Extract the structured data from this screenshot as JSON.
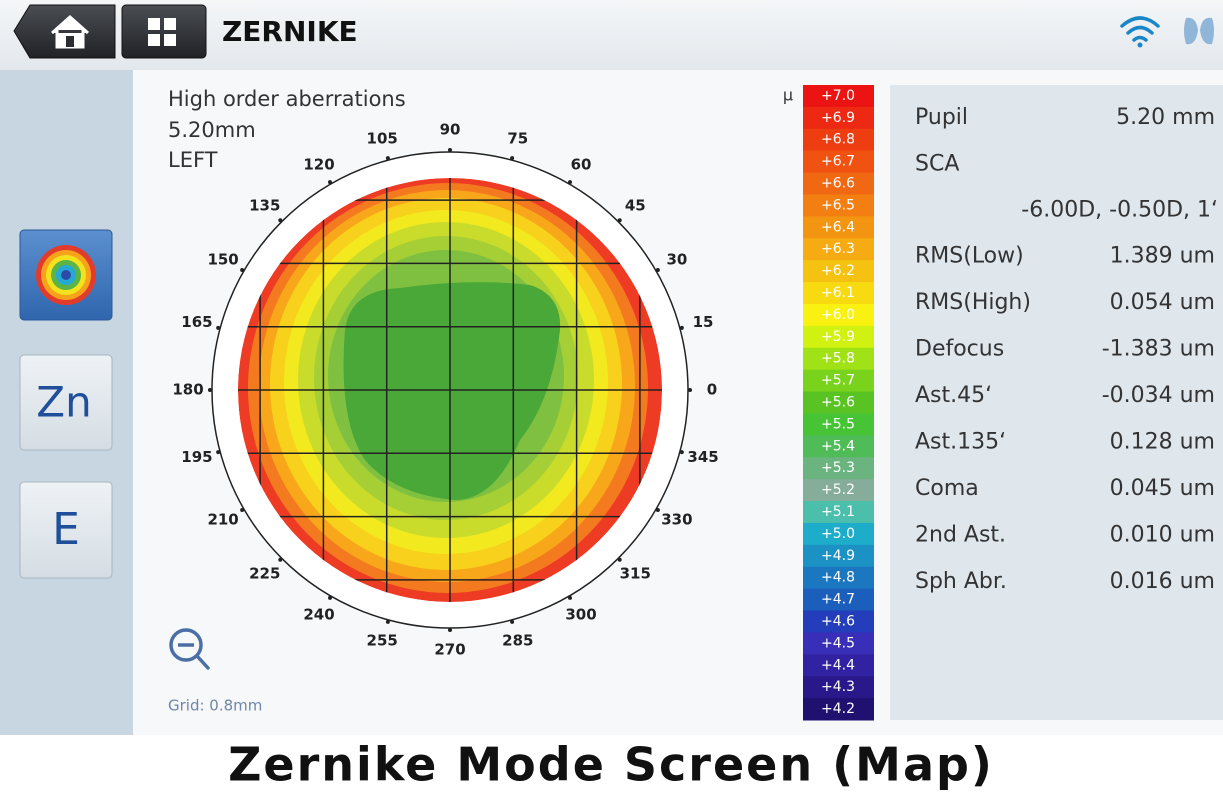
{
  "header": {
    "title": "ZERNIKE"
  },
  "side_buttons": [
    "Zn",
    "E"
  ],
  "map": {
    "title": "High order aberrations",
    "pupil": "5.20mm",
    "eye": "LEFT",
    "angles": [
      "0",
      "15",
      "30",
      "45",
      "60",
      "75",
      "90",
      "105",
      "120",
      "135",
      "150",
      "165",
      "180",
      "195",
      "210",
      "225",
      "240",
      "255",
      "270",
      "285",
      "300",
      "315",
      "330",
      "345"
    ],
    "grid_note": "Grid: 0.8mm"
  },
  "scale": {
    "unit": "μ",
    "labels": [
      "+7.0",
      "+6.9",
      "+6.8",
      "+6.7",
      "+6.6",
      "+6.5",
      "+6.4",
      "+6.3",
      "+6.2",
      "+6.1",
      "+6.0",
      "+5.9",
      "+5.8",
      "+5.7",
      "+5.6",
      "+5.5",
      "+5.4",
      "+5.3",
      "+5.2",
      "+5.1",
      "+5.0",
      "+4.9",
      "+4.8",
      "+4.7",
      "+4.6",
      "+4.5",
      "+4.4",
      "+4.3",
      "+4.2"
    ]
  },
  "results": [
    {
      "label": "Pupil",
      "value": "5.20 mm"
    },
    {
      "label": "SCA",
      "value": "-6.00D, -0.50D, 1‘"
    },
    {
      "label": "RMS(Low)",
      "value": "1.389 um"
    },
    {
      "label": "RMS(High)",
      "value": "0.054 um"
    },
    {
      "label": "Defocus",
      "value": "-1.383 um"
    },
    {
      "label": "Ast.45‘",
      "value": "-0.034 um"
    },
    {
      "label": "Ast.135‘",
      "value": "0.128 um"
    },
    {
      "label": "Coma",
      "value": "0.045 um"
    },
    {
      "label": "2nd Ast.",
      "value": "0.010 um"
    },
    {
      "label": "Sph Abr.",
      "value": "0.016 um"
    }
  ],
  "caption": "Zernike Mode Screen (Map)"
}
